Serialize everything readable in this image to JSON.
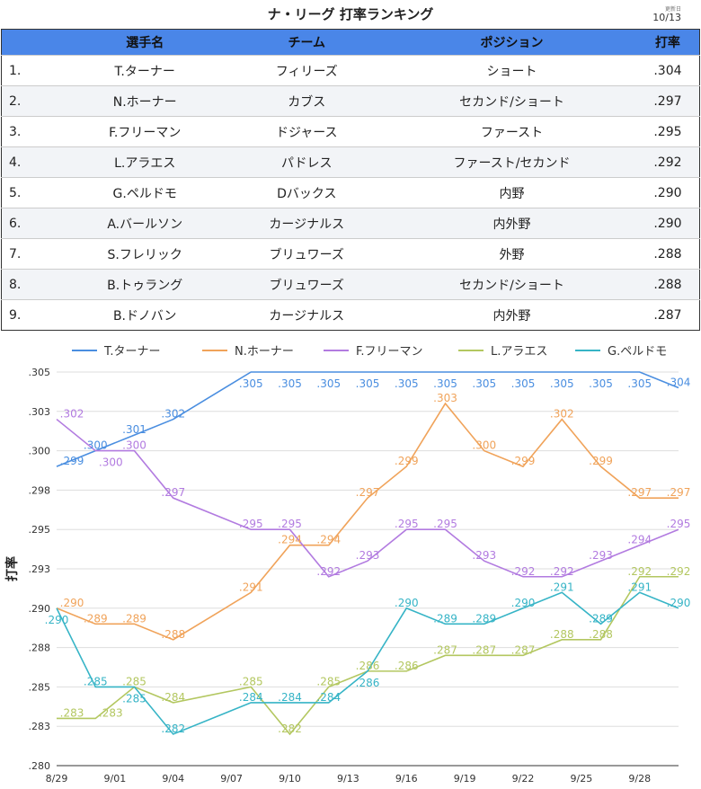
{
  "title": "ナ・リーグ 打率ランキング",
  "updated": {
    "label": "更新日",
    "date": "10/13"
  },
  "table": {
    "headers": [
      "",
      "選手名",
      "チーム",
      "ポジション",
      "打率"
    ],
    "rows": [
      [
        "1.",
        "T.ターナー",
        "フィリーズ",
        "ショート",
        ".304"
      ],
      [
        "2.",
        "N.ホーナー",
        "カブス",
        "セカンド/ショート",
        ".297"
      ],
      [
        "3.",
        "F.フリーマン",
        "ドジャース",
        "ファースト",
        ".295"
      ],
      [
        "4.",
        "L.アラエス",
        "パドレス",
        "ファースト/セカンド",
        ".292"
      ],
      [
        "5.",
        "G.ペルドモ",
        "Dバックス",
        "内野",
        ".290"
      ],
      [
        "6.",
        "A.バールソン",
        "カージナルス",
        "内外野",
        ".290"
      ],
      [
        "7.",
        "S.フレリック",
        "ブリュワーズ",
        "外野",
        ".288"
      ],
      [
        "8.",
        "B.トゥラング",
        "ブリュワーズ",
        "セカンド/ショート",
        ".288"
      ],
      [
        "9.",
        "B.ドノバン",
        "カージナルス",
        "内外野",
        ".287"
      ]
    ]
  },
  "chart_data": {
    "type": "line",
    "ylabel": "打率",
    "ylim": [
      0.28,
      0.305
    ],
    "yticks": [
      ".280",
      ".283",
      ".285",
      ".288",
      ".290",
      ".293",
      ".295",
      ".298",
      ".300",
      ".303",
      ".305"
    ],
    "xticks": [
      "8/29",
      "9/01",
      "9/04",
      "9/07",
      "9/10",
      "9/13",
      "9/16",
      "9/19",
      "9/22",
      "9/25",
      "9/28"
    ],
    "x_days": [
      0,
      2,
      4,
      6,
      10,
      12,
      14,
      16,
      18,
      20,
      22,
      24,
      26,
      28,
      30,
      32
    ],
    "legend_position": "top",
    "series": [
      {
        "name": "T.ターナー",
        "color": "#4a8ee0",
        "values": [
          0.299,
          0.3,
          0.301,
          0.302,
          0.305,
          0.305,
          0.305,
          0.305,
          0.305,
          0.305,
          0.305,
          0.305,
          0.305,
          0.305,
          0.305,
          0.304
        ]
      },
      {
        "name": "N.ホーナー",
        "color": "#f0a35a",
        "values": [
          0.29,
          0.289,
          0.289,
          0.288,
          0.291,
          0.294,
          0.294,
          0.297,
          0.299,
          0.303,
          0.3,
          0.299,
          0.302,
          0.299,
          0.297,
          0.297
        ]
      },
      {
        "name": "F.フリーマン",
        "color": "#b27be0",
        "values": [
          0.302,
          0.3,
          0.3,
          0.297,
          0.295,
          0.295,
          0.292,
          0.293,
          0.295,
          0.295,
          0.293,
          0.292,
          0.292,
          0.293,
          0.294,
          0.295
        ]
      },
      {
        "name": "L.アラエス",
        "color": "#b3c760",
        "values": [
          0.283,
          0.283,
          0.285,
          0.284,
          0.285,
          0.282,
          0.285,
          0.286,
          0.286,
          0.287,
          0.287,
          0.287,
          0.288,
          0.288,
          0.292,
          0.292
        ]
      },
      {
        "name": "G.ペルドモ",
        "color": "#36b4c6",
        "values": [
          0.29,
          0.285,
          0.285,
          0.282,
          0.284,
          0.284,
          0.284,
          0.286,
          0.29,
          0.289,
          0.289,
          0.29,
          0.291,
          0.289,
          0.291,
          0.29
        ]
      }
    ]
  }
}
